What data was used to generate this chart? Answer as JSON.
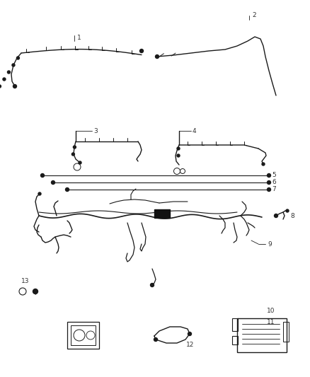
{
  "background_color": "#ffffff",
  "line_color": "#1a1a1a",
  "label_color": "#333333",
  "figsize": [
    4.38,
    5.33
  ],
  "dpi": 100
}
